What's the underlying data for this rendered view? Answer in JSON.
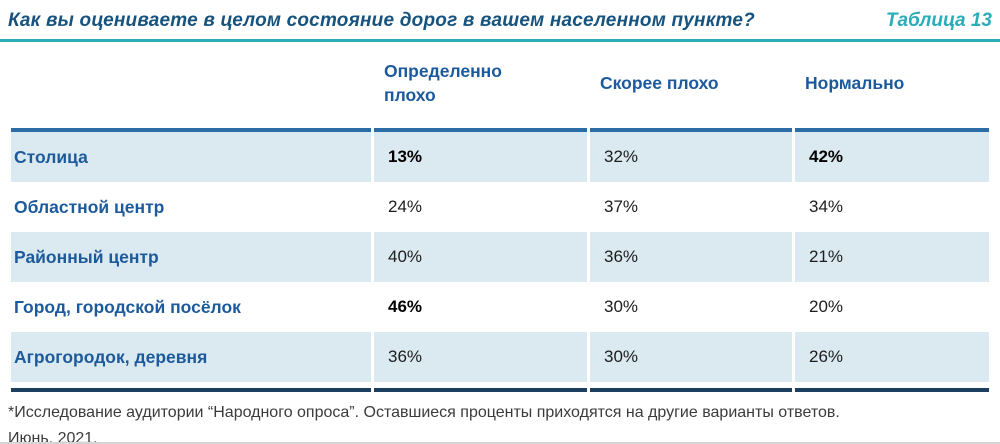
{
  "header": {
    "title": "Как вы оцениваете в целом состояние дорог в вашем населенном пункте?",
    "table_label": "Таблица 13"
  },
  "chart_data": {
    "type": "table",
    "title": "Как вы оцениваете в целом состояние дорог в вашем населенном пункте?",
    "columns": [
      "Определенно плохо",
      "Скорее плохо",
      "Нормально"
    ],
    "rows": [
      {
        "label": "Столица",
        "values": [
          {
            "v": "13%",
            "bold": true
          },
          {
            "v": "32%",
            "bold": false
          },
          {
            "v": "42%",
            "bold": true
          }
        ]
      },
      {
        "label": "Областной центр",
        "values": [
          {
            "v": "24%",
            "bold": false
          },
          {
            "v": "37%",
            "bold": false
          },
          {
            "v": "34%",
            "bold": false
          }
        ]
      },
      {
        "label": "Районный центр",
        "values": [
          {
            "v": "40%",
            "bold": false
          },
          {
            "v": "36%",
            "bold": false
          },
          {
            "v": "21%",
            "bold": false
          }
        ]
      },
      {
        "label": "Город, городской посёлок",
        "values": [
          {
            "v": "46%",
            "bold": true
          },
          {
            "v": "30%",
            "bold": false
          },
          {
            "v": "20%",
            "bold": false
          }
        ]
      },
      {
        "label": "Агрогородок, деревня",
        "values": [
          {
            "v": "36%",
            "bold": false
          },
          {
            "v": "30%",
            "bold": false
          },
          {
            "v": "26%",
            "bold": false
          }
        ]
      }
    ]
  },
  "footnote": {
    "line1": "*Исследование аудитории “Народного опроса”. Оставшиеся проценты приходятся на другие варианты ответов.",
    "line2": "Июнь, 2021."
  },
  "colors": {
    "title_text": "#16537e",
    "accent_teal": "#2aadb9",
    "header_text": "#1c5a9c",
    "row_label_text": "#1c5a9c",
    "header_rule": "#2d6da6",
    "bottom_rule": "#1d3e5f",
    "alt_row_bg": "#dbe9f0",
    "value_text": "#1d1d1d",
    "footnote_text": "#3b3b3b"
  }
}
